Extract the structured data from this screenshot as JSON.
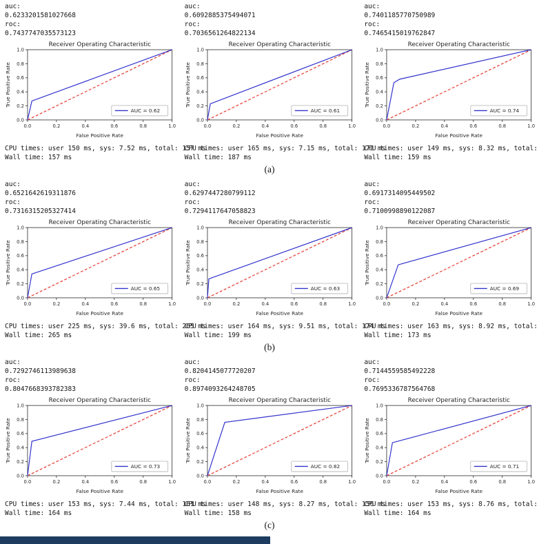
{
  "page": {
    "background": "#ffffff",
    "bottom_bar_color": "#1d3c5f"
  },
  "rows": [
    {
      "label": "(a)",
      "panels": [
        {
          "auc_label": "auc:",
          "auc": "0.6233201581027668",
          "roc_label": "roc:",
          "roc": "0.7437747035573123",
          "cpu": "CPU times: user 150 ms, sys: 7.52 ms, total: 157 ms",
          "wall": "Wall time: 157 ms"
        },
        {
          "auc_label": "auc:",
          "auc": "0.6092885375494071",
          "roc_label": "roc:",
          "roc": "0.7036561264822134",
          "cpu": "CPU times: user 165 ms, sys: 7.15 ms, total: 172 ms",
          "wall": "Wall time: 187 ms"
        },
        {
          "auc_label": "auc:",
          "auc": "0.7401185770750989",
          "roc_label": "roc:",
          "roc": "0.7465415019762847",
          "cpu": "CPU times: user 149 ms, sys: 8.32 ms, total: 157 ms",
          "wall": "Wall time: 159 ms"
        }
      ]
    },
    {
      "label": "(b)",
      "panels": [
        {
          "auc_label": "auc:",
          "auc": "0.6521642619311876",
          "roc_label": "roc:",
          "roc": "0.7316315205327414",
          "cpu": "CPU times: user 225 ms, sys: 39.6 ms, total: 265 ms",
          "wall": "Wall time: 265 ms"
        },
        {
          "auc_label": "auc:",
          "auc": "0.6297447280799112",
          "roc_label": "roc:",
          "roc": "0.7294117647058823",
          "cpu": "CPU times: user 164 ms, sys: 9.51 ms, total: 174 ms",
          "wall": "Wall time: 199 ms"
        },
        {
          "auc_label": "auc:",
          "auc": "0.6917314095449502",
          "roc_label": "roc:",
          "roc": "0.7100998890122087",
          "cpu": "CPU times: user 163 ms, sys: 8.92 ms, total: 172 ms",
          "wall": "Wall time: 173 ms"
        }
      ]
    },
    {
      "label": "(c)",
      "panels": [
        {
          "auc_label": "auc:",
          "auc": "0.7292746113989638",
          "roc_label": "roc:",
          "roc": "0.8047668393782383",
          "cpu": "CPU times: user 153 ms, sys: 7.44 ms, total: 161 ms",
          "wall": "Wall time: 164 ms"
        },
        {
          "auc_label": "auc:",
          "auc": "0.8204145077720207",
          "roc_label": "roc:",
          "roc": "0.8974093264248705",
          "cpu": "CPU times: user 148 ms, sys: 8.27 ms, total: 156 ms",
          "wall": "Wall time: 158 ms"
        },
        {
          "auc_label": "auc:",
          "auc": "0.7144559585492228",
          "roc_label": "roc:",
          "roc": "0.7695336787564768",
          "cpu": "CPU times: user 153 ms, sys: 8.76 ms, total: 162 ms",
          "wall": "Wall time: 164 ms"
        }
      ]
    }
  ],
  "chart_data": [
    {
      "type": "line",
      "title": "Receiver Operating Characteristic",
      "xlabel": "False Positive Rate",
      "ylabel": "True Positive Rate",
      "xlim": [
        0,
        1
      ],
      "ylim": [
        0,
        1
      ],
      "xticks": [
        "0.0",
        "0.2",
        "0.4",
        "0.6",
        "0.8",
        "1.0"
      ],
      "yticks": [
        "0.0",
        "0.2",
        "0.4",
        "0.6",
        "0.8",
        "1.0"
      ],
      "legend": {
        "label": "AUC = 0.62",
        "position": "lower right"
      },
      "series": [
        {
          "name": "roc-curve",
          "color": "#3232cd",
          "style": "solid",
          "points": [
            [
              0,
              0
            ],
            [
              0.03,
              0.27
            ],
            [
              1,
              1
            ]
          ]
        },
        {
          "name": "chance-diagonal",
          "color": "#e43d32",
          "style": "dashed",
          "points": [
            [
              0,
              0
            ],
            [
              1,
              1
            ]
          ]
        }
      ]
    },
    {
      "type": "line",
      "title": "Receiver Operating Characteristic",
      "xlabel": "False Positive Rate",
      "ylabel": "True Positive Rate",
      "xlim": [
        0,
        1
      ],
      "ylim": [
        0,
        1
      ],
      "xticks": [
        "0.0",
        "0.2",
        "0.4",
        "0.6",
        "0.8",
        "1.0"
      ],
      "yticks": [
        "0.0",
        "0.2",
        "0.4",
        "0.6",
        "0.8",
        "1.0"
      ],
      "legend": {
        "label": "AUC = 0.61",
        "position": "lower right"
      },
      "series": [
        {
          "name": "roc-curve",
          "color": "#3232cd",
          "style": "solid",
          "points": [
            [
              0,
              0
            ],
            [
              0.02,
              0.23
            ],
            [
              1,
              1
            ]
          ]
        },
        {
          "name": "chance-diagonal",
          "color": "#e43d32",
          "style": "dashed",
          "points": [
            [
              0,
              0
            ],
            [
              1,
              1
            ]
          ]
        }
      ]
    },
    {
      "type": "line",
      "title": "Receiver Operating Characteristic",
      "xlabel": "False Positive Rate",
      "ylabel": "True Positive Rate",
      "xlim": [
        0,
        1
      ],
      "ylim": [
        0,
        1
      ],
      "xticks": [
        "0.0",
        "0.2",
        "0.4",
        "0.6",
        "0.8",
        "1.0"
      ],
      "yticks": [
        "0.0",
        "0.2",
        "0.4",
        "0.6",
        "0.8",
        "1.0"
      ],
      "legend": {
        "label": "AUC = 0.74",
        "position": "lower right"
      },
      "series": [
        {
          "name": "roc-curve",
          "color": "#3232cd",
          "style": "solid",
          "points": [
            [
              0,
              0
            ],
            [
              0.05,
              0.53
            ],
            [
              0.09,
              0.58
            ],
            [
              1,
              1
            ]
          ]
        },
        {
          "name": "chance-diagonal",
          "color": "#e43d32",
          "style": "dashed",
          "points": [
            [
              0,
              0
            ],
            [
              1,
              1
            ]
          ]
        }
      ]
    },
    {
      "type": "line",
      "title": "Receiver Operating Characteristic",
      "xlabel": "False Positive Rate",
      "ylabel": "True Positive Rate",
      "xlim": [
        0,
        1
      ],
      "ylim": [
        0,
        1
      ],
      "xticks": [
        "0.0",
        "0.2",
        "0.4",
        "0.6",
        "0.8",
        "1.0"
      ],
      "yticks": [
        "0.0",
        "0.2",
        "0.4",
        "0.6",
        "0.8",
        "1.0"
      ],
      "legend": {
        "label": "AUC = 0.65",
        "position": "lower right"
      },
      "series": [
        {
          "name": "roc-curve",
          "color": "#3232cd",
          "style": "solid",
          "points": [
            [
              0,
              0
            ],
            [
              0.03,
              0.34
            ],
            [
              1,
              1
            ]
          ]
        },
        {
          "name": "chance-diagonal",
          "color": "#e43d32",
          "style": "dashed",
          "points": [
            [
              0,
              0
            ],
            [
              1,
              1
            ]
          ]
        }
      ]
    },
    {
      "type": "line",
      "title": "Receiver Operating Characteristic",
      "xlabel": "False Positive Rate",
      "ylabel": "True Positive Rate",
      "xlim": [
        0,
        1
      ],
      "ylim": [
        0,
        1
      ],
      "xticks": [
        "0.0",
        "0.2",
        "0.4",
        "0.6",
        "0.8",
        "1.0"
      ],
      "yticks": [
        "0.0",
        "0.2",
        "0.4",
        "0.6",
        "0.8",
        "1.0"
      ],
      "legend": {
        "label": "AUC = 0.63",
        "position": "lower right"
      },
      "series": [
        {
          "name": "roc-curve",
          "color": "#3232cd",
          "style": "solid",
          "points": [
            [
              0,
              0
            ],
            [
              0.01,
              0.27
            ],
            [
              1,
              1
            ]
          ]
        },
        {
          "name": "chance-diagonal",
          "color": "#e43d32",
          "style": "dashed",
          "points": [
            [
              0,
              0
            ],
            [
              1,
              1
            ]
          ]
        }
      ]
    },
    {
      "type": "line",
      "title": "Receiver Operating Characteristic",
      "xlabel": "False Positive Rate",
      "ylabel": "True Positive Rate",
      "xlim": [
        0,
        1
      ],
      "ylim": [
        0,
        1
      ],
      "xticks": [
        "0.0",
        "0.2",
        "0.4",
        "0.6",
        "0.8",
        "1.0"
      ],
      "yticks": [
        "0.0",
        "0.2",
        "0.4",
        "0.6",
        "0.8",
        "1.0"
      ],
      "legend": {
        "label": "AUC = 0.69",
        "position": "lower right"
      },
      "series": [
        {
          "name": "roc-curve",
          "color": "#3232cd",
          "style": "solid",
          "points": [
            [
              0,
              0
            ],
            [
              0.08,
              0.47
            ],
            [
              1,
              1
            ]
          ]
        },
        {
          "name": "chance-diagonal",
          "color": "#e43d32",
          "style": "dashed",
          "points": [
            [
              0,
              0
            ],
            [
              1,
              1
            ]
          ]
        }
      ]
    },
    {
      "type": "line",
      "title": "Receiver Operating Characteristic",
      "xlabel": "False Positive Rate",
      "ylabel": "True Positive Rate",
      "xlim": [
        0,
        1
      ],
      "ylim": [
        0,
        1
      ],
      "xticks": [
        "0.0",
        "0.2",
        "0.4",
        "0.6",
        "0.8",
        "1.0"
      ],
      "yticks": [
        "0.0",
        "0.2",
        "0.4",
        "0.6",
        "0.8",
        "1.0"
      ],
      "legend": {
        "label": "AUC = 0.73",
        "position": "lower right"
      },
      "series": [
        {
          "name": "roc-curve",
          "color": "#3232cd",
          "style": "solid",
          "points": [
            [
              0,
              0
            ],
            [
              0.03,
              0.49
            ],
            [
              1,
              1
            ]
          ]
        },
        {
          "name": "chance-diagonal",
          "color": "#e43d32",
          "style": "dashed",
          "points": [
            [
              0,
              0
            ],
            [
              1,
              1
            ]
          ]
        }
      ]
    },
    {
      "type": "line",
      "title": "Receiver Operating Characteristic",
      "xlabel": "False Positive Rate",
      "ylabel": "True Positive Rate",
      "xlim": [
        0,
        1
      ],
      "ylim": [
        0,
        1
      ],
      "xticks": [
        "0.0",
        "0.2",
        "0.4",
        "0.6",
        "0.8",
        "1.0"
      ],
      "yticks": [
        "0.0",
        "0.2",
        "0.4",
        "0.6",
        "0.8",
        "1.0"
      ],
      "legend": {
        "label": "AUC = 0.82",
        "position": "lower right"
      },
      "series": [
        {
          "name": "roc-curve",
          "color": "#3232cd",
          "style": "solid",
          "points": [
            [
              0,
              0
            ],
            [
              0.12,
              0.76
            ],
            [
              1,
              1
            ]
          ]
        },
        {
          "name": "chance-diagonal",
          "color": "#e43d32",
          "style": "dashed",
          "points": [
            [
              0,
              0
            ],
            [
              1,
              1
            ]
          ]
        }
      ]
    },
    {
      "type": "line",
      "title": "Receiver Operating Characteristic",
      "xlabel": "False Positive Rate",
      "ylabel": "True Positive Rate",
      "xlim": [
        0,
        1
      ],
      "ylim": [
        0,
        1
      ],
      "xticks": [
        "0.0",
        "0.2",
        "0.4",
        "0.6",
        "0.8",
        "1.0"
      ],
      "yticks": [
        "0.0",
        "0.2",
        "0.4",
        "0.6",
        "0.8",
        "1.0"
      ],
      "legend": {
        "label": "AUC = 0.71",
        "position": "lower right"
      },
      "series": [
        {
          "name": "roc-curve",
          "color": "#3232cd",
          "style": "solid",
          "points": [
            [
              0,
              0
            ],
            [
              0.04,
              0.47
            ],
            [
              1,
              1
            ]
          ]
        },
        {
          "name": "chance-diagonal",
          "color": "#e43d32",
          "style": "dashed",
          "points": [
            [
              0,
              0
            ],
            [
              1,
              1
            ]
          ]
        }
      ]
    }
  ]
}
